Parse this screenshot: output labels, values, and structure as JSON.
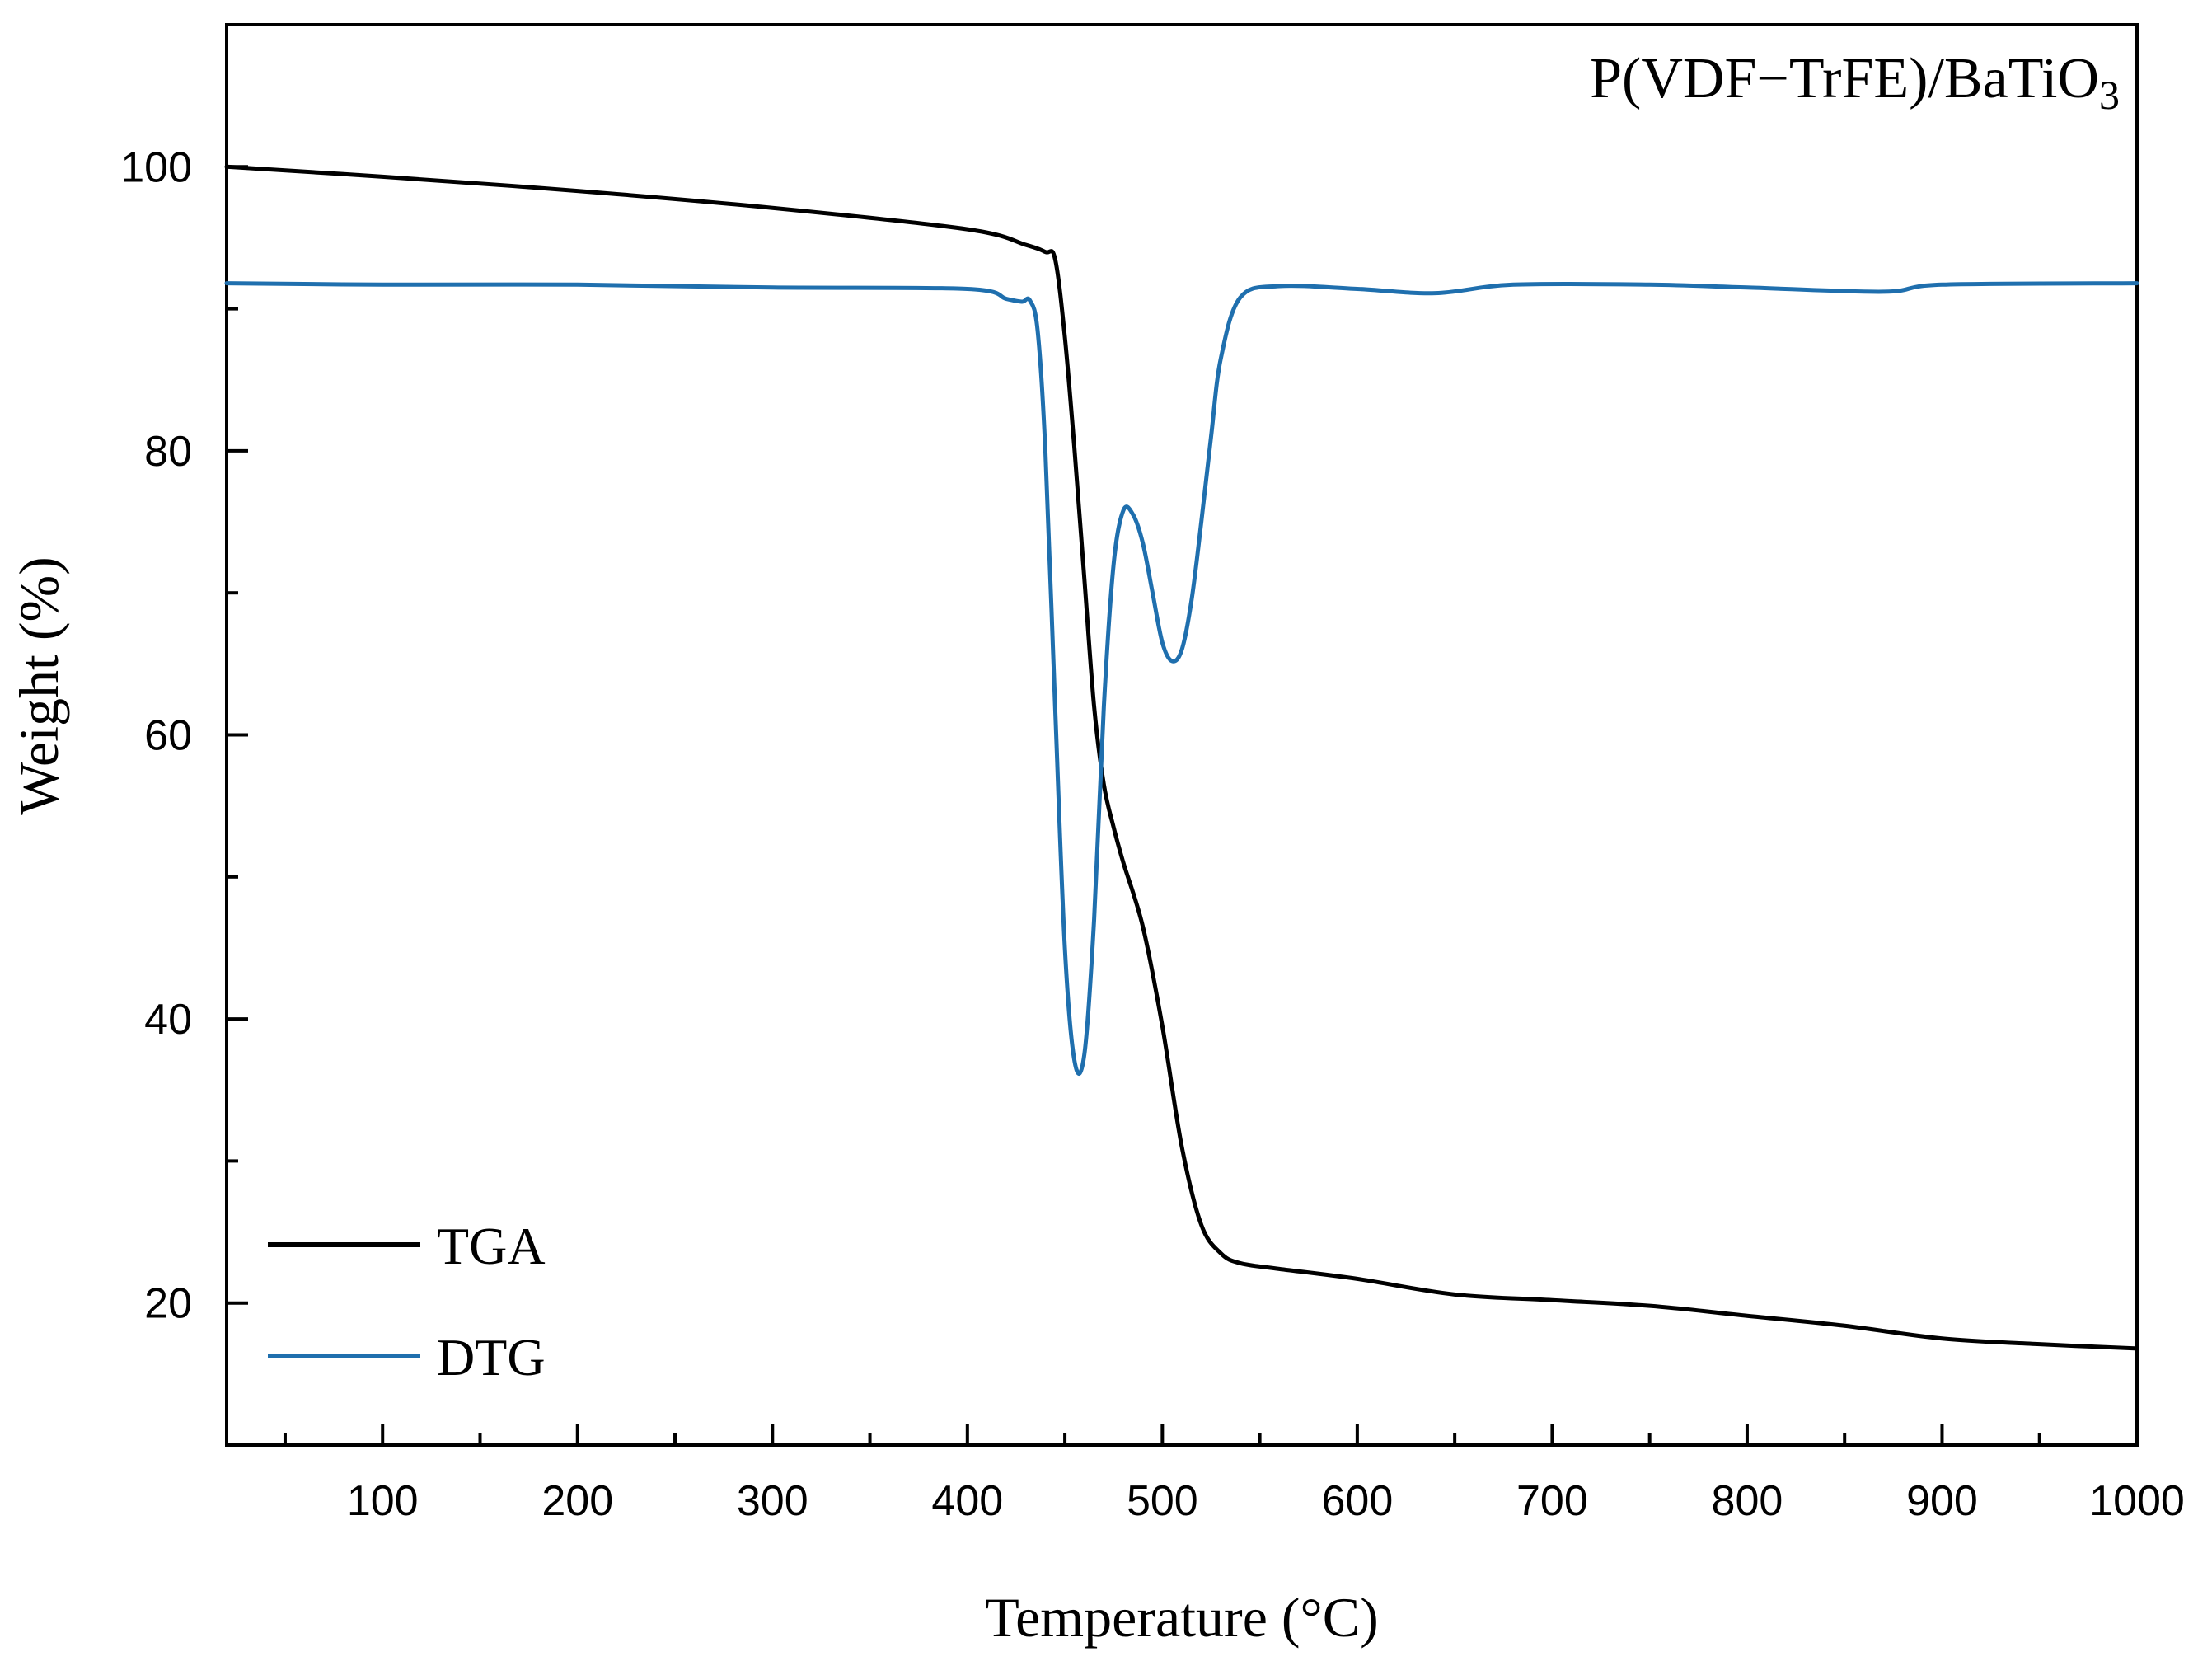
{
  "chart_data": {
    "type": "line",
    "title": "",
    "annotation": {
      "prefix": "P(VDF−TrFE)/BaTiO",
      "subscript": "3"
    },
    "xlabel": "Temperature (°C)",
    "ylabel": "Weight (%)",
    "xlim": [
      20,
      1000
    ],
    "ylim": [
      10,
      110
    ],
    "x_ticks": [
      100,
      200,
      300,
      400,
      500,
      600,
      700,
      800,
      900,
      1000
    ],
    "x_minor_ticks": [
      50,
      150,
      250,
      350,
      450,
      550,
      650,
      750,
      850,
      950
    ],
    "x_tick_labels": [
      "100",
      "200",
      "300",
      "400",
      "500",
      "600",
      "700",
      "800",
      "900",
      "1000"
    ],
    "y_ticks": [
      20,
      40,
      60,
      80,
      100
    ],
    "y_minor_ticks": [
      30,
      50,
      70,
      90
    ],
    "y_tick_labels": [
      "20",
      "40",
      "60",
      "80",
      "100"
    ],
    "legend_position": "bottom-left",
    "series": [
      {
        "name": "TGA",
        "color": "#000000",
        "x": [
          20,
          100,
          200,
          300,
          400,
          430,
          440,
          445,
          450,
          455,
          460,
          465,
          470,
          475,
          480,
          490,
          500,
          510,
          520,
          530,
          540,
          560,
          600,
          650,
          700,
          750,
          800,
          850,
          900,
          950,
          1000
        ],
        "y": [
          100.0,
          99.3,
          98.3,
          97.1,
          95.6,
          94.5,
          94.0,
          93.5,
          88.0,
          80.0,
          71.0,
          62.0,
          56.5,
          53.5,
          51.0,
          46.5,
          39.5,
          31.0,
          25.5,
          23.5,
          22.8,
          22.4,
          21.7,
          20.6,
          20.2,
          19.8,
          19.1,
          18.4,
          17.5,
          17.1,
          16.8
        ]
      },
      {
        "name": "DTG",
        "color": "#1f6fae",
        "x": [
          20,
          100,
          200,
          300,
          400,
          420,
          428,
          432,
          436,
          440,
          445,
          450,
          455,
          460,
          465,
          470,
          475,
          480,
          485,
          490,
          495,
          500,
          505,
          510,
          515,
          520,
          525,
          530,
          540,
          560,
          600,
          640,
          680,
          750,
          800,
          870,
          900,
          1000
        ],
        "y": [
          91.8,
          91.7,
          91.7,
          91.5,
          91.4,
          90.7,
          90.5,
          90.6,
          88.5,
          80.0,
          62.0,
          45.0,
          37.0,
          37.5,
          47.0,
          62.0,
          72.0,
          75.8,
          75.5,
          73.5,
          70.0,
          66.5,
          65.2,
          66.0,
          69.5,
          75.0,
          81.0,
          86.5,
          90.8,
          91.6,
          91.4,
          91.1,
          91.7,
          91.7,
          91.5,
          91.2,
          91.7,
          91.8
        ]
      }
    ]
  }
}
